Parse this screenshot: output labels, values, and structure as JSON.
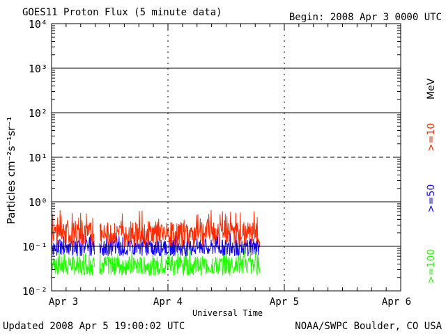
{
  "header": {
    "title": "GOES11 Proton Flux (5 minute data)",
    "begin": "Begin: 2008 Apr 3 0000 UTC"
  },
  "footer": {
    "updated": "Updated 2008 Apr  5 19:00:02 UTC",
    "credit": "NOAA/SWPC Boulder, CO USA"
  },
  "chart_data": {
    "type": "line",
    "ylabel": "Particles cm⁻²s⁻¹sr⁻¹",
    "xlabel": "Universal Time",
    "x_ticks": [
      "Apr 3",
      "Apr 4",
      "Apr 5",
      "Apr 6"
    ],
    "x_range_days": [
      0,
      3
    ],
    "y_scale": "log",
    "y_range": [
      0.01,
      10000
    ],
    "y_ticks": [
      "10⁻²",
      "10⁻¹",
      "10⁰",
      "10¹",
      "10²",
      "10³",
      "10⁴"
    ],
    "y_threshold_lines": [
      0.1,
      1,
      100,
      1000
    ],
    "y_dashed_lines": [
      10
    ],
    "data_gap_days": [
      0.37,
      0.41
    ],
    "data_end_day": 1.79,
    "series": [
      {
        "legend": ">=10",
        "unit": "MeV",
        "color": "#ff2a00",
        "typical": 0.2,
        "low": 0.1,
        "high": 0.65
      },
      {
        "legend": ">=50",
        "color": "#1400ff",
        "typical": 0.1,
        "low": 0.06,
        "high": 0.2
      },
      {
        "legend": ">=100",
        "color": "#22ff00",
        "typical": 0.04,
        "low": 0.022,
        "high": 0.09
      }
    ]
  }
}
